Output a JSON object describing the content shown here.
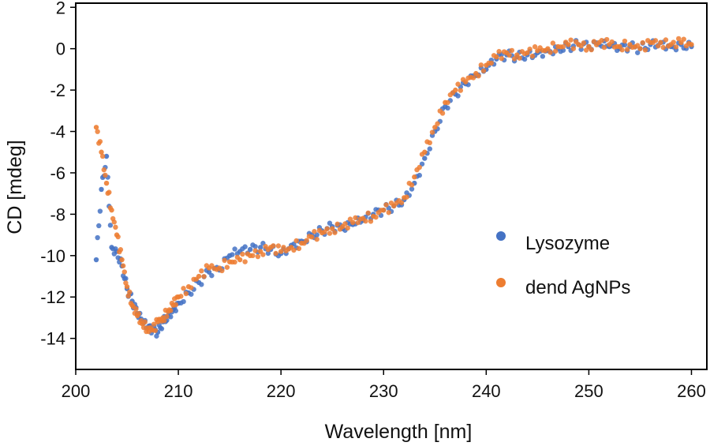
{
  "chart_data": {
    "type": "scatter",
    "title": "",
    "xlabel": "Wavelength [nm]",
    "ylabel": "CD [mdeg]",
    "xlim": [
      200,
      261.5
    ],
    "ylim": [
      -15.5,
      2.2
    ],
    "x_ticks": [
      200,
      210,
      220,
      230,
      240,
      250,
      260
    ],
    "y_ticks": [
      2,
      0,
      -2,
      -4,
      -6,
      -8,
      -10,
      -12,
      -14
    ],
    "grid": false,
    "legend_position": "center-right",
    "series": [
      {
        "name": "Lysozyme",
        "color": "#4472c4",
        "x": [
          202,
          202.5,
          203,
          203.5,
          204,
          204.5,
          205,
          205.5,
          206,
          206.5,
          207,
          207.5,
          208,
          208.5,
          209,
          209.5,
          210,
          211,
          212,
          213,
          214,
          215,
          216,
          217,
          218,
          219,
          220,
          221,
          222,
          223,
          224,
          225,
          226,
          227,
          228,
          229,
          230,
          231,
          232,
          233,
          234,
          235,
          236,
          237,
          238,
          239,
          240,
          241,
          242,
          243,
          244,
          245,
          246,
          247,
          248,
          249,
          250,
          251,
          252,
          253,
          254,
          255,
          256,
          257,
          258,
          259,
          260
        ],
        "y": [
          -10.2,
          -6.8,
          -5.2,
          -9.6,
          -9.8,
          -10.5,
          -11.6,
          -12.2,
          -12.8,
          -13.2,
          -13.5,
          -13.6,
          -13.7,
          -13.2,
          -12.9,
          -12.6,
          -12.3,
          -11.8,
          -11.3,
          -10.8,
          -10.7,
          -10.0,
          -9.8,
          -9.7,
          -9.6,
          -9.7,
          -9.9,
          -9.5,
          -9.3,
          -9.0,
          -8.8,
          -8.6,
          -8.7,
          -8.5,
          -8.3,
          -8.0,
          -7.8,
          -7.6,
          -7.3,
          -6.5,
          -5.3,
          -4.0,
          -2.8,
          -2.2,
          -1.7,
          -1.3,
          -1.0,
          -0.5,
          -0.3,
          -0.4,
          -0.3,
          -0.2,
          -0.1,
          0.0,
          0.1,
          0.2,
          0.1,
          0.2,
          0.1,
          0.0,
          0.1,
          0.0,
          0.2,
          0.3,
          0.1,
          0.2,
          0.1
        ]
      },
      {
        "name": "dend AgNPs",
        "color": "#ed7d31",
        "x": [
          202,
          202.5,
          203,
          203.5,
          204,
          204.5,
          205,
          205.5,
          206,
          206.5,
          207,
          207.5,
          208,
          208.5,
          209,
          209.5,
          210,
          211,
          212,
          213,
          214,
          215,
          216,
          217,
          218,
          219,
          220,
          221,
          222,
          223,
          224,
          225,
          226,
          227,
          228,
          229,
          230,
          231,
          232,
          233,
          234,
          235,
          236,
          237,
          238,
          239,
          240,
          241,
          242,
          243,
          244,
          245,
          246,
          247,
          248,
          249,
          250,
          251,
          252,
          253,
          254,
          255,
          256,
          257,
          258,
          259,
          260
        ],
        "y": [
          -3.8,
          -5.0,
          -6.5,
          -7.8,
          -9.0,
          -10.2,
          -11.5,
          -12.4,
          -12.9,
          -13.3,
          -13.5,
          -13.6,
          -13.2,
          -13.0,
          -12.7,
          -12.4,
          -12.0,
          -11.5,
          -11.0,
          -10.6,
          -10.6,
          -10.3,
          -10.2,
          -10.0,
          -9.8,
          -9.6,
          -9.8,
          -9.6,
          -9.4,
          -9.1,
          -8.9,
          -8.7,
          -8.6,
          -8.4,
          -8.2,
          -8.1,
          -7.8,
          -7.6,
          -7.2,
          -6.2,
          -5.0,
          -3.8,
          -2.6,
          -2.0,
          -1.6,
          -1.2,
          -0.8,
          -0.4,
          -0.2,
          -0.3,
          -0.2,
          -0.1,
          0.0,
          0.1,
          0.2,
          0.2,
          0.1,
          0.3,
          0.2,
          0.1,
          0.2,
          0.0,
          0.3,
          0.3,
          0.2,
          0.3,
          0.2
        ]
      }
    ]
  }
}
